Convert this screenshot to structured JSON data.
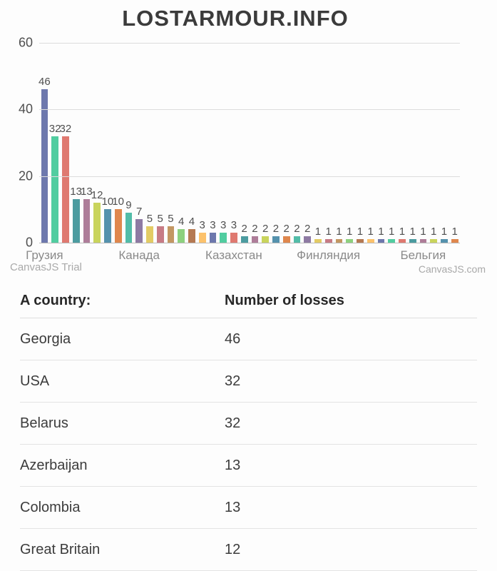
{
  "header": {
    "title": "LOSTARMOUR.INFO"
  },
  "chart_data": {
    "type": "bar",
    "title": "",
    "xlabel": "",
    "ylabel": "",
    "ylim": [
      0,
      60
    ],
    "yticks": [
      0,
      20,
      40,
      60
    ],
    "grid": true,
    "values": [
      46,
      32,
      32,
      13,
      13,
      12,
      10,
      10,
      9,
      7,
      5,
      5,
      5,
      4,
      4,
      3,
      3,
      3,
      3,
      2,
      2,
      2,
      2,
      2,
      2,
      2,
      1,
      1,
      1,
      1,
      1,
      1,
      1,
      1,
      1,
      1,
      1,
      1,
      1,
      1
    ],
    "colors": [
      "#6D78AD",
      "#51CDA0",
      "#DF7970",
      "#4C9CA0",
      "#AE7D99",
      "#C9D45C",
      "#5592AD",
      "#DF874D",
      "#52BCA8",
      "#8E7AA3",
      "#E3CB64",
      "#C77B85",
      "#C39762",
      "#8DD17E",
      "#B57952",
      "#FCC26C"
    ],
    "x_axis_labels": [
      {
        "label": "Грузия",
        "index": 0
      },
      {
        "label": "Канада",
        "index": 9
      },
      {
        "label": "Казахстан",
        "index": 18
      },
      {
        "label": "Финляндия",
        "index": 27
      },
      {
        "label": "Бельгия",
        "index": 36
      }
    ],
    "watermark_left": "CanvasJS Trial",
    "watermark_right": "CanvasJS.com"
  },
  "table": {
    "headers": {
      "country": "A country:",
      "losses": "Number of losses"
    },
    "rows": [
      {
        "country": "Georgia",
        "losses": "46"
      },
      {
        "country": "USA",
        "losses": "32"
      },
      {
        "country": "Belarus",
        "losses": "32"
      },
      {
        "country": "Azerbaijan",
        "losses": "13"
      },
      {
        "country": "Colombia",
        "losses": "13"
      },
      {
        "country": "Great Britain",
        "losses": "12"
      }
    ]
  }
}
